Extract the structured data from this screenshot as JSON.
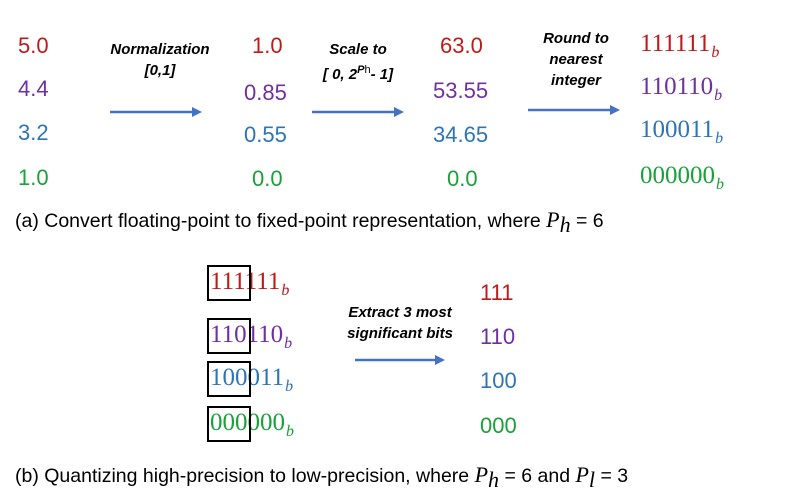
{
  "colors": {
    "red": "#c0191a",
    "purple": "#7030a0",
    "blue": "#2e75b6",
    "green": "#1aa13a",
    "arrow": "#4472c4"
  },
  "part_a": {
    "col_input": [
      "5.0",
      "4.4",
      "3.2",
      "1.0"
    ],
    "col_normalized": [
      "1.0",
      "0.85",
      "0.55",
      "0.0"
    ],
    "col_scaled": [
      "63.0",
      "53.55",
      "34.65",
      "0.0"
    ],
    "col_binary": [
      "111111",
      "110110",
      "100011",
      "000000"
    ],
    "binary_subscript": "b",
    "step1_line1": "Normalization",
    "step1_line2": "[0,1]",
    "step2_line1": "Scale to",
    "step2_line2_pre": "[ 0, 2",
    "step2_line2_sup": "P",
    "step2_line2_supsub": "h",
    "step2_line2_post": "- 1]",
    "step3_line1": "Round to",
    "step3_line2": "nearest",
    "step3_line3": "integer",
    "caption_text": "(a) Convert floating-point to fixed-point representation, where",
    "caption_var": "P",
    "caption_sub": "h",
    "caption_value": "= 6"
  },
  "part_b": {
    "msb": [
      "111",
      "110",
      "100",
      "000"
    ],
    "lsb": [
      "111",
      "110",
      "011",
      "000"
    ],
    "binary_subscript": "b",
    "step_line1": "Extract 3 most",
    "step_line2": "significant bits",
    "results": [
      "111",
      "110",
      "100",
      "000"
    ],
    "caption_text": "(b) Quantizing high-precision to low-precision, where",
    "caption_var1": "P",
    "caption_sub1": "h",
    "caption_mid": "= 6 and",
    "caption_var2": "P",
    "caption_sub2": "l",
    "caption_value": "= 3"
  }
}
